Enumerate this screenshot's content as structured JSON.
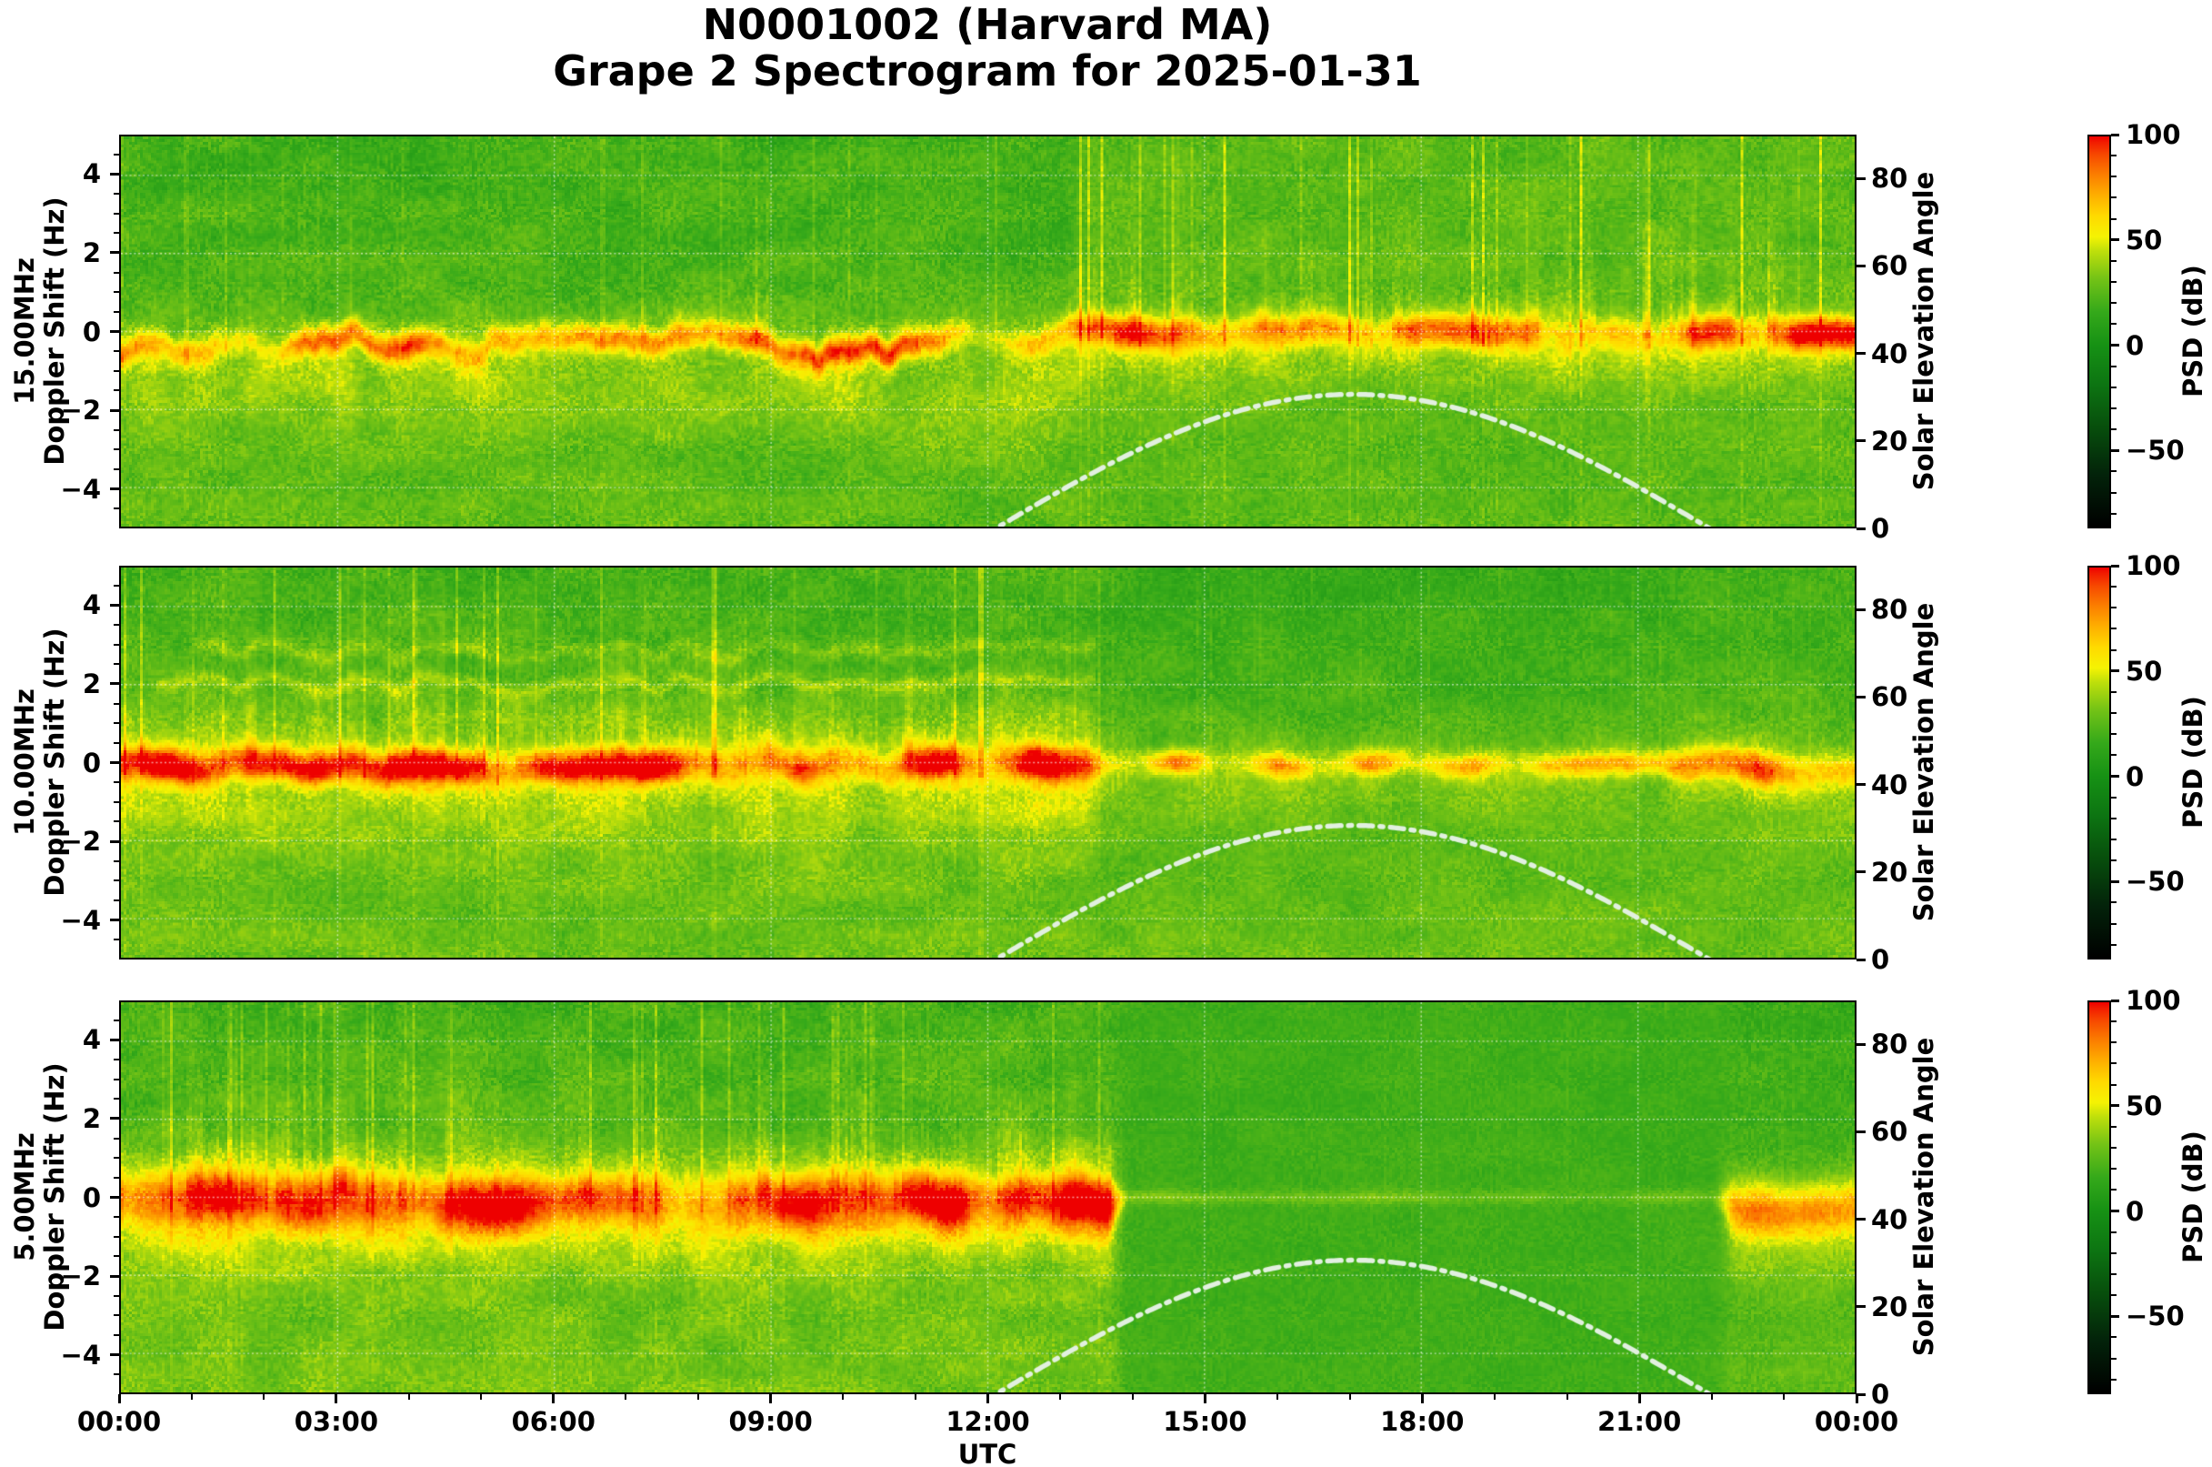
{
  "title": {
    "line1": "N0001002 (Harvard MA)",
    "line2": "Grape 2 Spectrogram for 2025-01-31"
  },
  "chart_data": {
    "type": "heatmap",
    "title": "N0001002 (Harvard MA) Grape 2 Spectrogram for 2025-01-31",
    "x_axis": {
      "label": "UTC",
      "range_hours": [
        0,
        24
      ],
      "minor_step_hours": 1,
      "ticks": [
        {
          "label": "00:00",
          "hour": 0
        },
        {
          "label": "03:00",
          "hour": 3
        },
        {
          "label": "06:00",
          "hour": 6
        },
        {
          "label": "09:00",
          "hour": 9
        },
        {
          "label": "12:00",
          "hour": 12
        },
        {
          "label": "15:00",
          "hour": 15
        },
        {
          "label": "18:00",
          "hour": 18
        },
        {
          "label": "21:00",
          "hour": 21
        },
        {
          "label": "00:00",
          "hour": 24
        }
      ]
    },
    "y_axis": {
      "label_line2": "Doppler Shift (Hz)",
      "range_hz": [
        -5,
        5
      ],
      "minor_step_hz": 0.5,
      "ticks": [
        {
          "label": "4",
          "value": 4
        },
        {
          "label": "2",
          "value": 2
        },
        {
          "label": "0",
          "value": 0
        },
        {
          "label": "−2",
          "value": -2
        },
        {
          "label": "−4",
          "value": -4
        }
      ]
    },
    "y2_axis": {
      "label": "Solar Elevation Angle",
      "range_deg": [
        0,
        90
      ],
      "ticks": [
        {
          "label": "0",
          "value": 0
        },
        {
          "label": "20",
          "value": 20
        },
        {
          "label": "40",
          "value": 40
        },
        {
          "label": "60",
          "value": 60
        },
        {
          "label": "80",
          "value": 80
        }
      ]
    },
    "colorbar": {
      "label": "PSD (dB)",
      "range_db": [
        -87,
        100
      ],
      "minor_step_db": 10,
      "ticks": [
        {
          "label": "100",
          "value": 100
        },
        {
          "label": "50",
          "value": 50
        },
        {
          "label": "0",
          "value": 0
        },
        {
          "label": "−50",
          "value": -50
        }
      ],
      "stops": [
        [
          -87,
          "#000000"
        ],
        [
          -62,
          "#03230a"
        ],
        [
          -40,
          "#074d0c"
        ],
        [
          -18,
          "#0d7612"
        ],
        [
          0,
          "#169114"
        ],
        [
          16,
          "#35a91a"
        ],
        [
          32,
          "#74c316"
        ],
        [
          45,
          "#bedf0b"
        ],
        [
          52,
          "#f5f303"
        ],
        [
          62,
          "#ffd900"
        ],
        [
          72,
          "#feae00"
        ],
        [
          82,
          "#fb7c00"
        ],
        [
          91,
          "#f74a00"
        ],
        [
          97,
          "#f21d00"
        ],
        [
          100,
          "#ee0000"
        ]
      ]
    },
    "solar_arc": {
      "description": "white dash-dot solar elevation curve",
      "peak_utc_hour": 17.05,
      "peak_elevation_deg": 30.5,
      "halfwidth_hours": 4.9,
      "sunrise_utc_hour": 12.15,
      "sunset_utc_hour": 21.95,
      "color": "#e2f0e0"
    },
    "panels": [
      {
        "freq_label": "15.00MHz",
        "segments": [
          {
            "t0": 0,
            "t1": 13.2,
            "base": 23,
            "grain": 17,
            "patch": 5,
            "vgrad": 4,
            "carrier": 48,
            "cwidth": 0.26,
            "wander": 1.3,
            "wcenter": -0.35,
            "diffuse": 22,
            "dcenter": -1.3,
            "dwidth": 1.0,
            "plume": 14,
            "pheight": 1.0,
            "streak": 8
          },
          {
            "t0": 13.2,
            "t1": 24,
            "base": 26,
            "grain": 16,
            "patch": 4,
            "vgrad": 0,
            "carrier": 56,
            "cwidth": 0.3,
            "wander": 0.5,
            "wcenter": -0.05,
            "diffuse": 16,
            "dcenter": -0.7,
            "dwidth": 0.7,
            "plume": 34,
            "pheight": 1.7,
            "streak": 24
          }
        ]
      },
      {
        "freq_label": "10.00MHz",
        "harmonics": [
          {
            "f": 2.05,
            "amp": 13,
            "t0": 0.5,
            "t1": 13.5
          },
          {
            "f": 2.9,
            "amp": 11,
            "t0": 1.0,
            "t1": 13.5
          }
        ],
        "segments": [
          {
            "t0": 0,
            "t1": 13.5,
            "base": 25,
            "grain": 16,
            "patch": 5,
            "vgrad": 5,
            "carrier": 64,
            "cwidth": 0.3,
            "wander": 0.6,
            "wcenter": -0.1,
            "diffuse": 26,
            "dcenter": -0.5,
            "dwidth": 1.2,
            "plume": 24,
            "pheight": 2.6,
            "streak": 20
          },
          {
            "t0": 13.5,
            "t1": 21.5,
            "base": 23,
            "grain": 14,
            "patch": 4,
            "vgrad": 6,
            "carrier": 40,
            "cwidth": 0.22,
            "wander": 0.35,
            "wcenter": -0.05,
            "diffuse": 12,
            "dcenter": -0.5,
            "dwidth": 0.8,
            "plume": 10,
            "pheight": 1.2,
            "streak": 5
          },
          {
            "t0": 21.5,
            "t1": 24,
            "base": 24,
            "grain": 15,
            "patch": 4,
            "vgrad": 5,
            "carrier": 52,
            "cwidth": 0.3,
            "wander": 0.7,
            "wcenter": -0.15,
            "diffuse": 20,
            "dcenter": -0.6,
            "dwidth": 0.9,
            "plume": 10,
            "pheight": 1.0,
            "streak": 4
          }
        ]
      },
      {
        "freq_label": "5.00MHz",
        "segments": [
          {
            "t0": 0,
            "t1": 13.8,
            "base": 26,
            "grain": 16,
            "patch": 5,
            "vgrad": 6,
            "carrier": 56,
            "cwidth": 0.5,
            "wander": 0.5,
            "wcenter": -0.1,
            "diffuse": 30,
            "dcenter": -0.5,
            "dwidth": 1.0,
            "plume": 30,
            "pheight": 2.2,
            "streak": 14
          },
          {
            "t0": 13.8,
            "t1": 22.2,
            "base": 19,
            "grain": 9,
            "patch": 2,
            "vgrad": 0,
            "carrier": 13,
            "cwidth": 0.12,
            "wander": 0.08,
            "wcenter": 0.0,
            "diffuse": 0,
            "dcenter": 0.0,
            "dwidth": 1.0,
            "plume": 0,
            "pheight": 1.0,
            "streak": 2
          },
          {
            "t0": 22.2,
            "t1": 24,
            "base": 22,
            "grain": 13,
            "patch": 3,
            "vgrad": 5,
            "carrier": 46,
            "cwidth": 0.45,
            "wander": 0.5,
            "wcenter": -0.3,
            "diffuse": 26,
            "dcenter": -0.8,
            "dwidth": 0.9,
            "plume": 6,
            "pheight": 0.8,
            "streak": 3
          }
        ]
      }
    ]
  }
}
